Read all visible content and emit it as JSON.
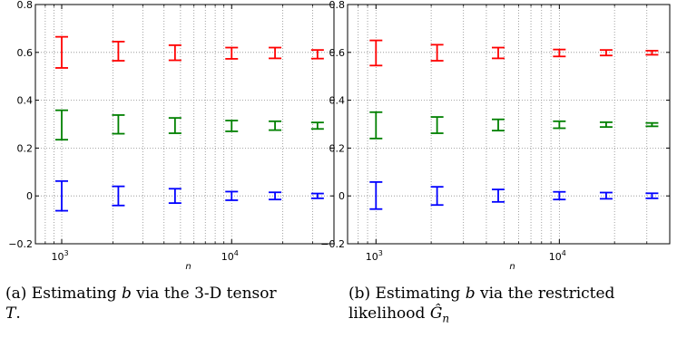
{
  "colors": {
    "red_series": "#ff0000",
    "green_series": "#008000",
    "blue_series": "#0000ff",
    "grid": "#8c8c8c",
    "axes": "#000000"
  },
  "chart_data": [
    {
      "type": "errorbar",
      "xlabel": "n",
      "x_scale": "log",
      "xlim": [
        700,
        40000
      ],
      "ylim": [
        -0.2,
        0.8
      ],
      "grid": "on (dotted, major and minor)",
      "y_ticks": [
        "−0.2",
        "0",
        "0.2",
        "0.4",
        "0.6",
        "0.8"
      ],
      "x_ticks": [
        {
          "base": "10",
          "exp": "3"
        },
        {
          "base": "10",
          "exp": "4"
        }
      ],
      "x": [
        1000,
        2154,
        4642,
        10000,
        18000,
        32000
      ],
      "series": [
        {
          "color": "red",
          "lower": [
            0.535,
            0.565,
            0.567,
            0.573,
            0.575,
            0.574
          ],
          "upper": [
            0.665,
            0.645,
            0.63,
            0.62,
            0.62,
            0.61
          ]
        },
        {
          "color": "green",
          "lower": [
            0.235,
            0.26,
            0.262,
            0.27,
            0.275,
            0.28
          ],
          "upper": [
            0.358,
            0.338,
            0.326,
            0.315,
            0.312,
            0.307
          ]
        },
        {
          "color": "blue",
          "lower": [
            -0.062,
            -0.04,
            -0.03,
            -0.018,
            -0.015,
            -0.01
          ],
          "upper": [
            0.062,
            0.04,
            0.03,
            0.018,
            0.015,
            0.01
          ]
        }
      ],
      "caption": {
        "label": "(a) Estimating",
        "var": "b",
        "mid": "via the 3-D tensor",
        "end": "T",
        "end_punct": "."
      }
    },
    {
      "type": "errorbar",
      "xlabel": "n",
      "x_scale": "log",
      "xlim": [
        700,
        40000
      ],
      "ylim": [
        -0.2,
        0.8
      ],
      "grid": "on (dotted, major and minor)",
      "y_ticks": [
        "−0.2",
        "0",
        "0.2",
        "0.4",
        "0.6",
        "0.8"
      ],
      "x_ticks": [
        {
          "base": "10",
          "exp": "3"
        },
        {
          "base": "10",
          "exp": "4"
        }
      ],
      "x": [
        1000,
        2154,
        4642,
        10000,
        18000,
        32000
      ],
      "series": [
        {
          "color": "red",
          "lower": [
            0.545,
            0.565,
            0.575,
            0.583,
            0.587,
            0.59
          ],
          "upper": [
            0.65,
            0.632,
            0.62,
            0.612,
            0.61,
            0.607
          ]
        },
        {
          "color": "green",
          "lower": [
            0.24,
            0.262,
            0.273,
            0.283,
            0.288,
            0.291
          ],
          "upper": [
            0.35,
            0.33,
            0.32,
            0.312,
            0.308,
            0.305
          ]
        },
        {
          "color": "blue",
          "lower": [
            -0.055,
            -0.038,
            -0.025,
            -0.015,
            -0.012,
            -0.01
          ],
          "upper": [
            0.058,
            0.038,
            0.027,
            0.017,
            0.014,
            0.011
          ]
        }
      ],
      "caption": {
        "label": "(b) Estimating",
        "var": "b",
        "mid": "via the restricted",
        "line2": "likelihood",
        "end": "Ĝ",
        "end_sub": "n"
      }
    }
  ]
}
